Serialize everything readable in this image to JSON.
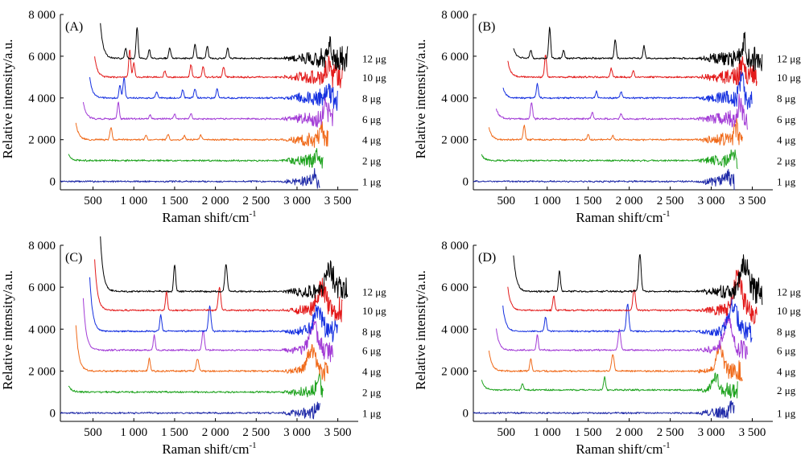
{
  "chart_data": [
    {
      "type": "line",
      "panel_label": "(A)",
      "xlabel": "Raman shift/cm",
      "xlabel_sup": "-1",
      "ylabel": "Relative intensity/a.u.",
      "x_tick_labels": [
        "500",
        "1 000",
        "1 500",
        "2 000",
        "2 500",
        "3 000",
        "3 500"
      ],
      "x_tick_values": [
        500,
        1000,
        1500,
        2000,
        2500,
        3000,
        3500
      ],
      "y_tick_labels": [
        "0",
        "2 000",
        "4 000",
        "6 000",
        "8 000"
      ],
      "y_tick_values": [
        0,
        2000,
        4000,
        6000,
        8000
      ],
      "ylim": [
        -400,
        8000
      ],
      "grid": false,
      "series": [
        {
          "name": "1 μg",
          "color": "#1f2aa8",
          "baseline": 0,
          "x_start": 100,
          "x_end": 3280,
          "edge_rise": 0,
          "noise_end": 800,
          "peaks": [
            [
              3200,
              300,
              25
            ]
          ]
        },
        {
          "name": "2 μg",
          "color": "#1fa31f",
          "baseline": 1000,
          "x_start": 200,
          "x_end": 3320,
          "edge_rise": 300,
          "noise_end": 900,
          "peaks": [
            [
              3250,
              400,
              25
            ]
          ]
        },
        {
          "name": "4 μg",
          "color": "#f06a1a",
          "baseline": 2000,
          "x_start": 290,
          "x_end": 3380,
          "edge_rise": 800,
          "noise_end": 1000,
          "peaks": [
            [
              720,
              600,
              12
            ],
            [
              1150,
              200,
              12
            ],
            [
              1420,
              250,
              12
            ],
            [
              1620,
              220,
              12
            ],
            [
              1820,
              200,
              12
            ],
            [
              3300,
              500,
              25
            ]
          ]
        },
        {
          "name": "6 μg",
          "color": "#a23bd6",
          "baseline": 3000,
          "x_start": 380,
          "x_end": 3440,
          "edge_rise": 800,
          "noise_end": 1100,
          "peaks": [
            [
              810,
              800,
              12
            ],
            [
              1200,
              200,
              12
            ],
            [
              1500,
              250,
              12
            ],
            [
              1700,
              250,
              12
            ],
            [
              3350,
              700,
              25
            ]
          ]
        },
        {
          "name": "8 μg",
          "color": "#1530e0",
          "baseline": 4000,
          "x_start": 460,
          "x_end": 3500,
          "edge_rise": 1000,
          "noise_end": 1200,
          "peaks": [
            [
              830,
              600,
              12
            ],
            [
              880,
              1000,
              12
            ],
            [
              1280,
              300,
              12
            ],
            [
              1600,
              400,
              12
            ],
            [
              1750,
              450,
              12
            ],
            [
              2020,
              450,
              12
            ],
            [
              3360,
              500,
              25
            ]
          ]
        },
        {
          "name": "10 μg",
          "color": "#e31a1a",
          "baseline": 5000,
          "x_start": 520,
          "x_end": 3560,
          "edge_rise": 1000,
          "noise_end": 1300,
          "peaks": [
            [
              950,
              1300,
              12
            ],
            [
              1000,
              700,
              12
            ],
            [
              1380,
              300,
              12
            ],
            [
              1700,
              600,
              12
            ],
            [
              1850,
              500,
              12
            ],
            [
              2100,
              500,
              12
            ],
            [
              3380,
              600,
              25
            ]
          ]
        },
        {
          "name": "12 μg",
          "color": "#000000",
          "baseline": 5900,
          "x_start": 590,
          "x_end": 3620,
          "edge_rise": 1700,
          "noise_end": 1400,
          "peaks": [
            [
              900,
              500,
              12
            ],
            [
              1040,
              1500,
              12
            ],
            [
              1190,
              400,
              12
            ],
            [
              1440,
              500,
              12
            ],
            [
              1750,
              700,
              12
            ],
            [
              1900,
              600,
              12
            ],
            [
              2150,
              500,
              12
            ],
            [
              3400,
              700,
              25
            ]
          ]
        }
      ]
    },
    {
      "type": "line",
      "panel_label": "(B)",
      "xlabel": "Raman shift/cm",
      "xlabel_sup": "-1",
      "ylabel": "Relative intensity/a.u.",
      "x_tick_labels": [
        "500",
        "1 000",
        "1 500",
        "2 000",
        "2 500",
        "3 000",
        "3 500"
      ],
      "x_tick_values": [
        500,
        1000,
        1500,
        2000,
        2500,
        3000,
        3500
      ],
      "y_tick_labels": [
        "0",
        "2 000",
        "4 000",
        "6 000",
        "8 000"
      ],
      "y_tick_values": [
        0,
        2000,
        4000,
        6000,
        8000
      ],
      "ylim": [
        -400,
        8000
      ],
      "grid": false,
      "series": [
        {
          "name": "1 μg",
          "color": "#1f2aa8",
          "baseline": 0,
          "x_start": 100,
          "x_end": 3280,
          "edge_rise": 0,
          "noise_end": 800,
          "peaks": [
            [
              3200,
              300,
              25
            ]
          ]
        },
        {
          "name": "2 μg",
          "color": "#1fa31f",
          "baseline": 1000,
          "x_start": 200,
          "x_end": 3320,
          "edge_rise": 300,
          "noise_end": 900,
          "peaks": [
            [
              3250,
              500,
              25
            ]
          ]
        },
        {
          "name": "4 μg",
          "color": "#f06a1a",
          "baseline": 2000,
          "x_start": 290,
          "x_end": 3380,
          "edge_rise": 600,
          "noise_end": 1000,
          "peaks": [
            [
              720,
              700,
              12
            ],
            [
              1500,
              250,
              12
            ],
            [
              1800,
              200,
              12
            ],
            [
              3300,
              600,
              25
            ]
          ]
        },
        {
          "name": "6 μg",
          "color": "#a23bd6",
          "baseline": 3000,
          "x_start": 380,
          "x_end": 3440,
          "edge_rise": 500,
          "noise_end": 1100,
          "peaks": [
            [
              810,
              800,
              12
            ],
            [
              1550,
              300,
              12
            ],
            [
              1900,
              250,
              12
            ],
            [
              3350,
              800,
              25
            ]
          ]
        },
        {
          "name": "8 μg",
          "color": "#1530e0",
          "baseline": 4000,
          "x_start": 460,
          "x_end": 3500,
          "edge_rise": 500,
          "noise_end": 1200,
          "peaks": [
            [
              880,
              700,
              12
            ],
            [
              1600,
              300,
              12
            ],
            [
              1900,
              300,
              12
            ],
            [
              3370,
              900,
              25
            ]
          ]
        },
        {
          "name": "10 μg",
          "color": "#e31a1a",
          "baseline": 5000,
          "x_start": 520,
          "x_end": 3560,
          "edge_rise": 800,
          "noise_end": 1300,
          "peaks": [
            [
              980,
              1100,
              12
            ],
            [
              1780,
              400,
              12
            ],
            [
              2050,
              300,
              12
            ],
            [
              3380,
              700,
              25
            ]
          ]
        },
        {
          "name": "12 μg",
          "color": "#000000",
          "baseline": 5900,
          "x_start": 590,
          "x_end": 3620,
          "edge_rise": 500,
          "noise_end": 1400,
          "peaks": [
            [
              800,
              400,
              12
            ],
            [
              1030,
              1500,
              12
            ],
            [
              1200,
              400,
              12
            ],
            [
              1830,
              900,
              12
            ],
            [
              2180,
              600,
              12
            ],
            [
              3400,
              900,
              25
            ]
          ]
        }
      ]
    },
    {
      "type": "line",
      "panel_label": "(C)",
      "xlabel": "Raman shift/cm",
      "xlabel_sup": "-1",
      "ylabel": "Relative intensity/a.u.",
      "x_tick_labels": [
        "500",
        "1 000",
        "1 500",
        "2 000",
        "2 500",
        "3 000",
        "3 500"
      ],
      "x_tick_values": [
        500,
        1000,
        1500,
        2000,
        2500,
        3000,
        3500
      ],
      "y_tick_labels": [
        "0",
        "2 000",
        "4 000",
        "6 000",
        "8 000"
      ],
      "y_tick_values": [
        0,
        2000,
        4000,
        6000,
        8000
      ],
      "ylim": [
        -400,
        8000
      ],
      "grid": false,
      "series": [
        {
          "name": "1 μg",
          "color": "#1f2aa8",
          "baseline": 0,
          "x_start": 100,
          "x_end": 3280,
          "edge_rise": 0,
          "noise_end": 800,
          "peaks": [
            [
              3250,
              300,
              25
            ]
          ]
        },
        {
          "name": "2 μg",
          "color": "#1fa31f",
          "baseline": 1000,
          "x_start": 200,
          "x_end": 3320,
          "edge_rise": 300,
          "noise_end": 900,
          "peaks": [
            [
              3260,
              600,
              30
            ]
          ]
        },
        {
          "name": "4 μg",
          "color": "#f06a1a",
          "baseline": 2000,
          "x_start": 290,
          "x_end": 3380,
          "edge_rise": 2200,
          "noise_end": 1000,
          "peaks": [
            [
              1190,
              600,
              12
            ],
            [
              1780,
              600,
              15
            ],
            [
              3180,
              1000,
              50
            ]
          ]
        },
        {
          "name": "6 μg",
          "color": "#a23bd6",
          "baseline": 3000,
          "x_start": 380,
          "x_end": 3440,
          "edge_rise": 2500,
          "noise_end": 1100,
          "peaks": [
            [
              1250,
              700,
              12
            ],
            [
              1850,
              900,
              15
            ],
            [
              3200,
              1200,
              50
            ]
          ]
        },
        {
          "name": "8 μg",
          "color": "#1530e0",
          "baseline": 3900,
          "x_start": 460,
          "x_end": 3500,
          "edge_rise": 2600,
          "noise_end": 1200,
          "peaks": [
            [
              1330,
              800,
              12
            ],
            [
              1930,
              1200,
              15
            ],
            [
              3250,
              1000,
              50
            ]
          ]
        },
        {
          "name": "10 μg",
          "color": "#e31a1a",
          "baseline": 4900,
          "x_start": 520,
          "x_end": 3560,
          "edge_rise": 2400,
          "noise_end": 1300,
          "peaks": [
            [
              1400,
              900,
              12
            ],
            [
              2050,
              1100,
              15
            ],
            [
              3300,
              1100,
              50
            ]
          ]
        },
        {
          "name": "12 μg",
          "color": "#000000",
          "baseline": 5800,
          "x_start": 590,
          "x_end": 3620,
          "edge_rise": 2600,
          "noise_end": 1400,
          "peaks": [
            [
              1500,
              1300,
              12
            ],
            [
              2130,
              1300,
              15
            ],
            [
              3400,
              1000,
              50
            ]
          ]
        }
      ]
    },
    {
      "type": "line",
      "panel_label": "(D)",
      "xlabel": "Raman shift/cm",
      "xlabel_sup": "-1",
      "ylabel": "Relative intensity/a.u.",
      "x_tick_labels": [
        "500",
        "1 000",
        "1 500",
        "2 000",
        "2 500",
        "3 000",
        "3 500"
      ],
      "x_tick_values": [
        500,
        1000,
        1500,
        2000,
        2500,
        3000,
        3500
      ],
      "y_tick_labels": [
        "0",
        "2 000",
        "4 000",
        "6 000",
        "8 000"
      ],
      "y_tick_values": [
        0,
        2000,
        4000,
        6000,
        8000
      ],
      "ylim": [
        -400,
        8000
      ],
      "grid": false,
      "series": [
        {
          "name": "1 μg",
          "color": "#1f2aa8",
          "baseline": 0,
          "x_start": 100,
          "x_end": 3280,
          "edge_rise": 0,
          "noise_end": 800,
          "peaks": [
            [
              3250,
              300,
              25
            ]
          ]
        },
        {
          "name": "2 μg",
          "color": "#1fa31f",
          "baseline": 1100,
          "x_start": 200,
          "x_end": 3320,
          "edge_rise": 500,
          "noise_end": 900,
          "peaks": [
            [
              700,
              300,
              12
            ],
            [
              1700,
              600,
              12
            ],
            [
              3050,
              600,
              40
            ]
          ]
        },
        {
          "name": "4 μg",
          "color": "#f06a1a",
          "baseline": 2000,
          "x_start": 290,
          "x_end": 3380,
          "edge_rise": 1000,
          "noise_end": 1000,
          "peaks": [
            [
              800,
              600,
              12
            ],
            [
              1800,
              800,
              15
            ],
            [
              3100,
              1200,
              40
            ]
          ]
        },
        {
          "name": "6 μg",
          "color": "#a23bd6",
          "baseline": 3000,
          "x_start": 380,
          "x_end": 3440,
          "edge_rise": 1000,
          "noise_end": 1100,
          "peaks": [
            [
              880,
              700,
              12
            ],
            [
              1880,
              1000,
              15
            ],
            [
              3200,
              1400,
              50
            ]
          ]
        },
        {
          "name": "8 μg",
          "color": "#1530e0",
          "baseline": 3900,
          "x_start": 460,
          "x_end": 3500,
          "edge_rise": 1200,
          "noise_end": 1200,
          "peaks": [
            [
              980,
              700,
              12
            ],
            [
              1980,
              1300,
              15
            ],
            [
              3260,
              1300,
              50
            ]
          ]
        },
        {
          "name": "10 μg",
          "color": "#e31a1a",
          "baseline": 4900,
          "x_start": 520,
          "x_end": 3560,
          "edge_rise": 1100,
          "noise_end": 1300,
          "peaks": [
            [
              1080,
              700,
              12
            ],
            [
              2060,
              1000,
              15
            ],
            [
              3320,
              1600,
              50
            ]
          ]
        },
        {
          "name": "12 μg",
          "color": "#000000",
          "baseline": 5800,
          "x_start": 590,
          "x_end": 3620,
          "edge_rise": 1700,
          "noise_end": 1400,
          "peaks": [
            [
              1150,
              1000,
              12
            ],
            [
              2130,
              1800,
              15
            ],
            [
              3400,
              1300,
              50
            ]
          ]
        }
      ]
    }
  ]
}
